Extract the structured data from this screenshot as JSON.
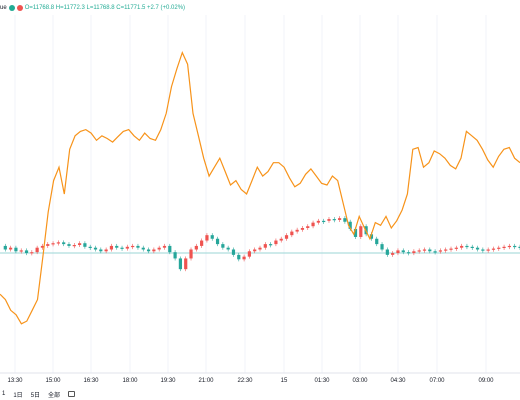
{
  "header": {
    "symbol_label": "ue",
    "ohlc_text": "O=11768.8 H=11772.3 L=11768.8 C=11771.5 +2.7 (+0.02%)"
  },
  "timeframes": [
    "1",
    "1日",
    "5日",
    "全部"
  ],
  "colors": {
    "orange": "#f7931a",
    "up": "#26a69a",
    "down": "#ef5350",
    "baseline": "#9bd6d6"
  },
  "chart_data": {
    "type": "line",
    "x_ticks": [
      "13:30",
      "15:00",
      "16:30",
      "18:00",
      "19:30",
      "21:00",
      "22:30",
      "15",
      "01:30",
      "03:00",
      "04:30",
      "07:00",
      "09:00"
    ],
    "series": [
      {
        "style": "line",
        "values": [
          312,
          318,
          330,
          335,
          345,
          342,
          330,
          318,
          270,
          220,
          185,
          170,
          200,
          150,
          135,
          130,
          128,
          132,
          140,
          135,
          138,
          142,
          136,
          130,
          128,
          135,
          140,
          132,
          138,
          140,
          128,
          110,
          80,
          60,
          42,
          55,
          110,
          135,
          160,
          180,
          170,
          160,
          175,
          190,
          185,
          195,
          200,
          185,
          170,
          180,
          175,
          165,
          165,
          170,
          182,
          192,
          188,
          178,
          172,
          180,
          188,
          190,
          180,
          185,
          210,
          235,
          245,
          225,
          238,
          250,
          232,
          235,
          225,
          238,
          230,
          218,
          200,
          150,
          148,
          170,
          165,
          152,
          155,
          160,
          168,
          172,
          160,
          130,
          135,
          140,
          150,
          162,
          170,
          158,
          150,
          148,
          160,
          165
        ]
      },
      {
        "style": "candles",
        "values": [
          258,
          262,
          260,
          264,
          263,
          266,
          265,
          260,
          258,
          256,
          255,
          254,
          256,
          258,
          257,
          255,
          259,
          260,
          262,
          264,
          262,
          258,
          260,
          261,
          259,
          258,
          260,
          262,
          264,
          262,
          260,
          258,
          265,
          272,
          284,
          272,
          262,
          258,
          252,
          246,
          250,
          256,
          260,
          262,
          268,
          273,
          270,
          264,
          262,
          260,
          256,
          256,
          252,
          250,
          246,
          242,
          240,
          238,
          236,
          232,
          230,
          230,
          228,
          229,
          227,
          231,
          239,
          248,
          236,
          245,
          250,
          256,
          262,
          268,
          266,
          263,
          265,
          266,
          264,
          263,
          262,
          264,
          264,
          263,
          262,
          261,
          260,
          258,
          259,
          260,
          262,
          263,
          262,
          261,
          260,
          259,
          258,
          259,
          260
        ]
      }
    ]
  }
}
